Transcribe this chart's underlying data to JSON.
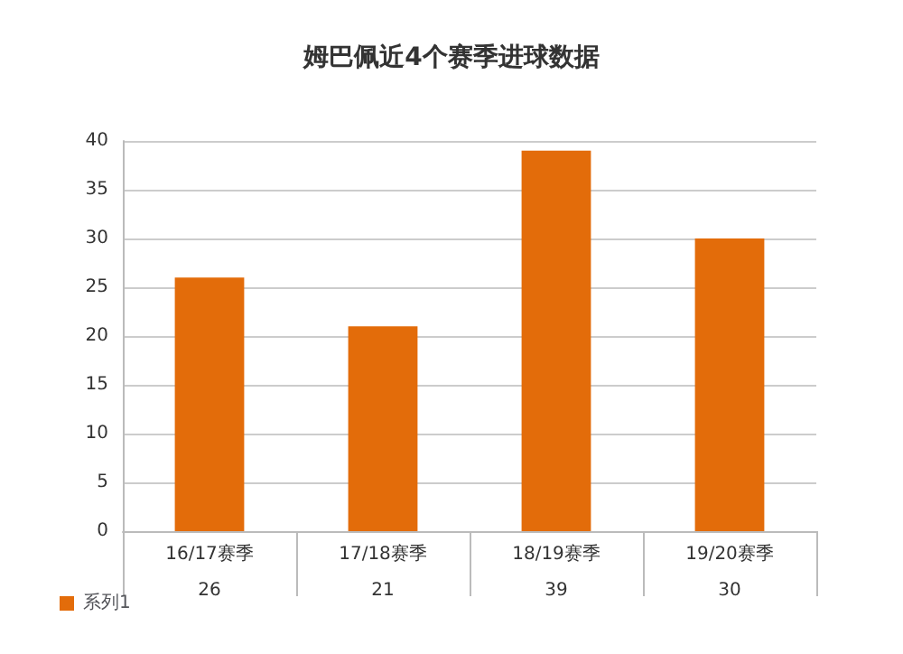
{
  "chart_data": {
    "type": "bar",
    "title": "姆巴佩近4个赛季进球数据",
    "categories": [
      "16/17赛季",
      "17/18赛季",
      "18/19赛季",
      "19/20赛季"
    ],
    "series": [
      {
        "name": "系列1",
        "color": "#e36c0a",
        "values": [
          26,
          21,
          39,
          30
        ]
      }
    ],
    "ylim": [
      0,
      40
    ],
    "yticks": [
      0,
      5,
      10,
      15,
      20,
      25,
      30,
      35,
      40
    ],
    "grid": "y",
    "legend": "bottom left",
    "data_labels": true
  }
}
